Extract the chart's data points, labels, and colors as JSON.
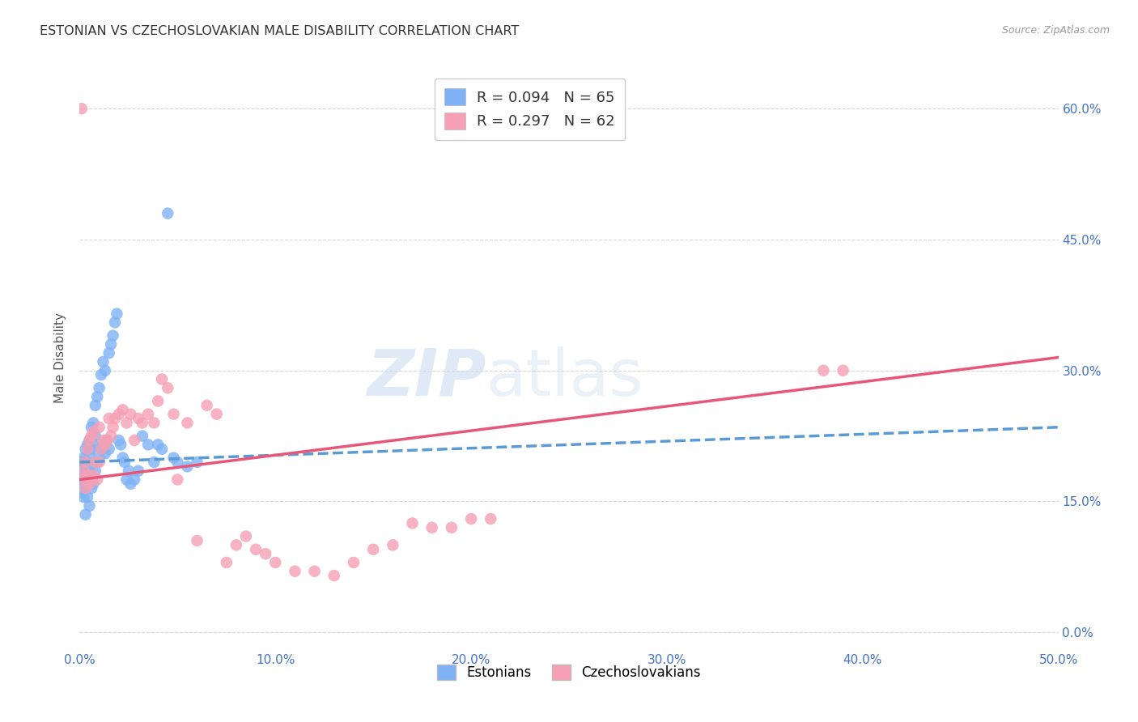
{
  "title": "ESTONIAN VS CZECHOSLOVAKIAN MALE DISABILITY CORRELATION CHART",
  "source": "Source: ZipAtlas.com",
  "ylabel": "Male Disability",
  "xlim": [
    0.0,
    0.5
  ],
  "ylim": [
    -0.02,
    0.65
  ],
  "xticks": [
    0.0,
    0.1,
    0.2,
    0.3,
    0.4,
    0.5
  ],
  "yticks": [
    0.0,
    0.15,
    0.3,
    0.45,
    0.6
  ],
  "xticklabels": [
    "0.0%",
    "10.0%",
    "20.0%",
    "30.0%",
    "40.0%",
    "50.0%"
  ],
  "right_yticklabels": [
    "0.0%",
    "15.0%",
    "30.0%",
    "45.0%",
    "60.0%"
  ],
  "estonian_color": "#7fb3f5",
  "czechoslovakian_color": "#f5a0b5",
  "estonian_line_color": "#5b9bd5",
  "czechoslovakian_line_color": "#e8567a",
  "R_estonian": 0.094,
  "N_estonian": 65,
  "R_czechoslovakian": 0.297,
  "N_czechoslovakian": 62,
  "legend_label_estonian": "Estonians",
  "legend_label_czechoslovakian": "Czechoslovakians",
  "watermark_part1": "ZIP",
  "watermark_part2": "atlas",
  "est_line_x": [
    0.0,
    0.5
  ],
  "est_line_y": [
    0.195,
    0.235
  ],
  "czk_line_x": [
    0.0,
    0.5
  ],
  "czk_line_y": [
    0.175,
    0.315
  ],
  "estonian_x": [
    0.001,
    0.001,
    0.001,
    0.001,
    0.002,
    0.002,
    0.002,
    0.002,
    0.002,
    0.003,
    0.003,
    0.003,
    0.003,
    0.004,
    0.004,
    0.004,
    0.005,
    0.005,
    0.005,
    0.005,
    0.006,
    0.006,
    0.006,
    0.007,
    0.007,
    0.007,
    0.008,
    0.008,
    0.008,
    0.009,
    0.009,
    0.01,
    0.01,
    0.011,
    0.011,
    0.012,
    0.012,
    0.013,
    0.013,
    0.014,
    0.015,
    0.015,
    0.016,
    0.017,
    0.018,
    0.019,
    0.02,
    0.021,
    0.022,
    0.023,
    0.024,
    0.025,
    0.026,
    0.028,
    0.03,
    0.032,
    0.035,
    0.038,
    0.04,
    0.042,
    0.045,
    0.048,
    0.05,
    0.055,
    0.06
  ],
  "estonian_y": [
    0.195,
    0.185,
    0.175,
    0.16,
    0.2,
    0.19,
    0.18,
    0.17,
    0.155,
    0.21,
    0.195,
    0.18,
    0.135,
    0.215,
    0.195,
    0.155,
    0.22,
    0.205,
    0.185,
    0.145,
    0.235,
    0.21,
    0.165,
    0.24,
    0.215,
    0.17,
    0.26,
    0.225,
    0.185,
    0.27,
    0.195,
    0.28,
    0.2,
    0.295,
    0.21,
    0.31,
    0.215,
    0.3,
    0.205,
    0.22,
    0.32,
    0.21,
    0.33,
    0.34,
    0.355,
    0.365,
    0.22,
    0.215,
    0.2,
    0.195,
    0.175,
    0.185,
    0.17,
    0.175,
    0.185,
    0.225,
    0.215,
    0.195,
    0.215,
    0.21,
    0.48,
    0.2,
    0.195,
    0.19,
    0.195
  ],
  "czechoslovakian_x": [
    0.001,
    0.002,
    0.002,
    0.003,
    0.003,
    0.004,
    0.004,
    0.005,
    0.005,
    0.006,
    0.006,
    0.007,
    0.007,
    0.008,
    0.009,
    0.01,
    0.01,
    0.011,
    0.012,
    0.013,
    0.014,
    0.015,
    0.016,
    0.017,
    0.018,
    0.02,
    0.022,
    0.024,
    0.026,
    0.028,
    0.03,
    0.032,
    0.035,
    0.038,
    0.04,
    0.042,
    0.045,
    0.048,
    0.05,
    0.055,
    0.06,
    0.065,
    0.07,
    0.075,
    0.08,
    0.085,
    0.09,
    0.095,
    0.1,
    0.11,
    0.12,
    0.13,
    0.14,
    0.15,
    0.16,
    0.17,
    0.18,
    0.19,
    0.2,
    0.21,
    0.38,
    0.39
  ],
  "czechoslovakian_y": [
    0.6,
    0.185,
    0.175,
    0.195,
    0.165,
    0.21,
    0.18,
    0.22,
    0.17,
    0.225,
    0.175,
    0.23,
    0.18,
    0.195,
    0.175,
    0.235,
    0.195,
    0.21,
    0.22,
    0.215,
    0.22,
    0.245,
    0.225,
    0.235,
    0.245,
    0.25,
    0.255,
    0.24,
    0.25,
    0.22,
    0.245,
    0.24,
    0.25,
    0.24,
    0.265,
    0.29,
    0.28,
    0.25,
    0.175,
    0.24,
    0.105,
    0.26,
    0.25,
    0.08,
    0.1,
    0.11,
    0.095,
    0.09,
    0.08,
    0.07,
    0.07,
    0.065,
    0.08,
    0.095,
    0.1,
    0.125,
    0.12,
    0.12,
    0.13,
    0.13,
    0.3,
    0.3
  ]
}
